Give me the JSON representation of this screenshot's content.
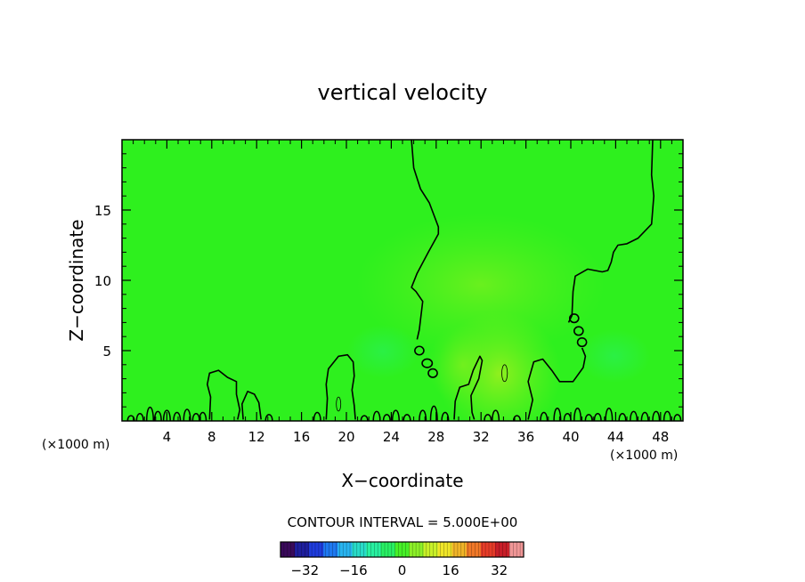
{
  "chart_data": {
    "type": "heatmap",
    "title": "vertical velocity",
    "xlabel": "X−coordinate",
    "ylabel": "Z−coordinate",
    "x_unit": "(×1000 m)",
    "y_unit": "(×1000 m)",
    "xlim": [
      0,
      50
    ],
    "ylim": [
      0,
      20
    ],
    "x_ticks": [
      4,
      8,
      12,
      16,
      20,
      24,
      28,
      32,
      36,
      40,
      44,
      48
    ],
    "x_tick_labels": [
      "4",
      "8",
      "12",
      "16",
      "20",
      "24",
      "28",
      "32",
      "36",
      "40",
      "44",
      "48"
    ],
    "y_ticks": [
      5,
      10,
      15
    ],
    "y_tick_labels": [
      "5",
      "10",
      "15"
    ],
    "contour_interval_text": "CONTOUR INTERVAL = 5.000E+00",
    "colorbar": {
      "range": [
        -40,
        40
      ],
      "tick_values": [
        -32,
        -16,
        0,
        16,
        32
      ],
      "tick_labels": [
        "−32",
        "−16",
        "0",
        "16",
        "32"
      ],
      "colors": [
        "#3a0a5a",
        "#1e1e9c",
        "#1e3cdc",
        "#1e78f0",
        "#28b4f0",
        "#28dcc8",
        "#28f0a0",
        "#28f064",
        "#46f028",
        "#8cf028",
        "#c8f028",
        "#f0e628",
        "#f0b428",
        "#f07828",
        "#e63c28",
        "#c81e28",
        "#f09696"
      ]
    },
    "background_value": 0,
    "zero_contour_lines": [
      {
        "name": "main-updraft-left",
        "points": [
          [
            25.8,
            20
          ],
          [
            26,
            18
          ],
          [
            26.6,
            16.5
          ],
          [
            27.4,
            15.5
          ],
          [
            28.2,
            13.8
          ],
          [
            28.2,
            13.3
          ],
          [
            27.3,
            12
          ],
          [
            26.3,
            10.5
          ],
          [
            25.8,
            9.5
          ],
          [
            26.2,
            9.2
          ],
          [
            26.8,
            8.5
          ],
          [
            26.5,
            6.5
          ],
          [
            26.3,
            5.8
          ]
        ]
      },
      {
        "name": "main-updraft-right",
        "points": [
          [
            47.3,
            20
          ],
          [
            47.2,
            17.5
          ],
          [
            47.4,
            16
          ],
          [
            47.2,
            14
          ],
          [
            46,
            13
          ],
          [
            45,
            12.6
          ],
          [
            44.2,
            12.5
          ],
          [
            43.8,
            12
          ],
          [
            43.6,
            11.3
          ],
          [
            43.3,
            10.7
          ],
          [
            42.8,
            10.6
          ],
          [
            41.5,
            10.8
          ],
          [
            40.4,
            10.3
          ],
          [
            40.2,
            9.2
          ],
          [
            40.1,
            7.5
          ],
          [
            39.8,
            7
          ]
        ]
      },
      {
        "name": "updraft-dome-right",
        "points": [
          [
            36.2,
            0.1
          ],
          [
            36.6,
            1.5
          ],
          [
            36.2,
            2.8
          ],
          [
            36.7,
            4.2
          ],
          [
            37.5,
            4.4
          ],
          [
            38.3,
            3.6
          ],
          [
            39,
            2.8
          ],
          [
            40.2,
            2.8
          ],
          [
            41.1,
            3.8
          ],
          [
            41.3,
            4.6
          ],
          [
            41,
            5.2
          ]
        ]
      },
      {
        "name": "dome-8",
        "points": [
          [
            7.8,
            0.1
          ],
          [
            7.9,
            1.7
          ],
          [
            7.6,
            2.6
          ],
          [
            7.8,
            3.4
          ],
          [
            8.6,
            3.6
          ],
          [
            9.4,
            3.1
          ],
          [
            10.2,
            2.8
          ],
          [
            10.2,
            1.9
          ],
          [
            10.5,
            0.8
          ],
          [
            10.3,
            0.1
          ]
        ]
      },
      {
        "name": "dome-11",
        "points": [
          [
            10.8,
            0.1
          ],
          [
            10.7,
            1.2
          ],
          [
            11.2,
            2.1
          ],
          [
            11.8,
            1.9
          ],
          [
            12.2,
            1.3
          ],
          [
            12.4,
            0.1
          ]
        ]
      },
      {
        "name": "dome-19",
        "points": [
          [
            18.2,
            0.1
          ],
          [
            18.3,
            1.6
          ],
          [
            18.2,
            2.6
          ],
          [
            18.4,
            3.7
          ],
          [
            19.3,
            4.6
          ],
          [
            20.1,
            4.7
          ],
          [
            20.6,
            4.2
          ],
          [
            20.7,
            3.2
          ],
          [
            20.5,
            2.2
          ],
          [
            20.7,
            1.1
          ],
          [
            20.8,
            0.1
          ]
        ]
      },
      {
        "name": "dome-31",
        "points": [
          [
            29.6,
            0.1
          ],
          [
            29.7,
            1.4
          ],
          [
            30.1,
            2.4
          ],
          [
            30.9,
            2.6
          ],
          [
            31.3,
            3.6
          ],
          [
            31.9,
            4.6
          ],
          [
            32.1,
            4.3
          ],
          [
            31.8,
            3
          ],
          [
            31.1,
            1.8
          ],
          [
            31.2,
            0.6
          ],
          [
            31.4,
            0.1
          ]
        ]
      }
    ],
    "zero_contour_loops": [
      {
        "name": "loop-a",
        "x": 26.5,
        "y": 5.0,
        "rx": 0.4,
        "ry": 0.3
      },
      {
        "name": "loop-b",
        "x": 27.2,
        "y": 4.1,
        "rx": 0.45,
        "ry": 0.3
      },
      {
        "name": "loop-c",
        "x": 27.7,
        "y": 3.4,
        "rx": 0.4,
        "ry": 0.3
      },
      {
        "name": "loop-d",
        "x": 40.3,
        "y": 7.3,
        "rx": 0.4,
        "ry": 0.3
      },
      {
        "name": "loop-e",
        "x": 40.7,
        "y": 6.4,
        "rx": 0.4,
        "ry": 0.3
      },
      {
        "name": "loop-f",
        "x": 41.0,
        "y": 5.6,
        "rx": 0.4,
        "ry": 0.3
      }
    ],
    "positive_contour_loops": [
      {
        "name": "plus5-20",
        "x": 19.3,
        "y": 1.2,
        "rx": 0.2,
        "ry": 0.5
      },
      {
        "name": "plus5-34",
        "x": 34.1,
        "y": 3.4,
        "rx": 0.25,
        "ry": 0.6
      }
    ],
    "surface_zero_contour_bumps": [
      {
        "x": 0.8,
        "h": 0.5
      },
      {
        "x": 1.6,
        "h": 0.7
      },
      {
        "x": 2.5,
        "h": 1.3
      },
      {
        "x": 3.2,
        "h": 0.9
      },
      {
        "x": 4.0,
        "h": 1.0
      },
      {
        "x": 4.9,
        "h": 0.8
      },
      {
        "x": 5.8,
        "h": 1.1
      },
      {
        "x": 6.6,
        "h": 0.7
      },
      {
        "x": 7.2,
        "h": 0.8
      },
      {
        "x": 13.1,
        "h": 0.6
      },
      {
        "x": 17.4,
        "h": 0.8
      },
      {
        "x": 21.6,
        "h": 0.5
      },
      {
        "x": 22.7,
        "h": 0.9
      },
      {
        "x": 23.6,
        "h": 0.6
      },
      {
        "x": 24.4,
        "h": 1.0
      },
      {
        "x": 25.4,
        "h": 0.6
      },
      {
        "x": 26.8,
        "h": 1.0
      },
      {
        "x": 27.8,
        "h": 1.4
      },
      {
        "x": 28.8,
        "h": 0.8
      },
      {
        "x": 32.6,
        "h": 0.6
      },
      {
        "x": 33.3,
        "h": 1.0
      },
      {
        "x": 35.2,
        "h": 0.5
      },
      {
        "x": 37.6,
        "h": 0.8
      },
      {
        "x": 38.8,
        "h": 1.2
      },
      {
        "x": 39.7,
        "h": 0.7
      },
      {
        "x": 40.6,
        "h": 1.2
      },
      {
        "x": 41.6,
        "h": 0.6
      },
      {
        "x": 42.4,
        "h": 0.7
      },
      {
        "x": 43.4,
        "h": 1.2
      },
      {
        "x": 44.6,
        "h": 0.7
      },
      {
        "x": 45.6,
        "h": 0.9
      },
      {
        "x": 46.6,
        "h": 0.8
      },
      {
        "x": 47.6,
        "h": 0.9
      },
      {
        "x": 48.6,
        "h": 0.9
      },
      {
        "x": 49.5,
        "h": 0.6
      }
    ]
  }
}
